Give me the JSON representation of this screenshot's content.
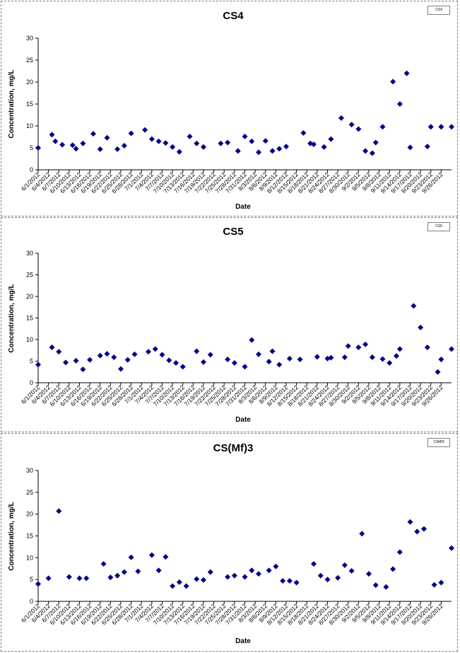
{
  "chart_data": [
    {
      "type": "scatter",
      "title": "CS4",
      "xlabel": "Date",
      "ylabel": "Concentration, mg/L",
      "ylim": [
        0,
        30
      ],
      "yticks": [
        0,
        5,
        10,
        15,
        20,
        25,
        30
      ],
      "xlim": [
        "6/1/2012",
        "9/29/2012"
      ],
      "xticks": [
        "6/1/2012",
        "6/4/2012",
        "6/7/2012",
        "6/10/2012",
        "6/13/2012",
        "6/16/2012",
        "6/19/2012",
        "6/22/2012",
        "6/25/2012",
        "6/28/2012",
        "7/1/2012",
        "7/4/2012",
        "7/7/2012",
        "7/10/2012",
        "7/13/2012",
        "7/16/2012",
        "7/19/2012",
        "7/22/2012",
        "7/25/2012",
        "7/28/2012",
        "7/31/2012",
        "8/3/2012",
        "8/6/2012",
        "8/9/2012",
        "8/12/2012",
        "8/15/2012",
        "8/18/2012",
        "8/21/2012",
        "8/24/2012",
        "8/27/2012",
        "8/30/2012",
        "9/2/2012",
        "9/5/2012",
        "9/8/2012",
        "9/11/2012",
        "9/14/2012",
        "9/17/2012",
        "9/20/2012",
        "9/23/2012",
        "9/26/2012"
      ],
      "grid": false,
      "legend": "top-right",
      "legend_text": "CS4",
      "color": "#00008B",
      "series": [
        {
          "name": "CS4",
          "x": [
            "6/1/2012",
            "6/5/2012",
            "6/6/2012",
            "6/8/2012",
            "6/11/2012",
            "6/12/2012",
            "6/14/2012",
            "6/17/2012",
            "6/19/2012",
            "6/21/2012",
            "6/24/2012",
            "6/26/2012",
            "6/28/2012",
            "7/2/2012",
            "7/4/2012",
            "7/6/2012",
            "7/8/2012",
            "7/10/2012",
            "7/12/2012",
            "7/15/2012",
            "7/17/2012",
            "7/19/2012",
            "7/24/2012",
            "7/26/2012",
            "7/29/2012",
            "7/31/2012",
            "8/2/2012",
            "8/4/2012",
            "8/6/2012",
            "8/8/2012",
            "8/10/2012",
            "8/12/2012",
            "8/17/2012",
            "8/19/2012",
            "8/20/2012",
            "8/23/2012",
            "8/25/2012",
            "8/28/2012",
            "8/31/2012",
            "9/2/2012",
            "9/4/2012",
            "9/6/2012",
            "9/7/2012",
            "9/9/2012",
            "9/12/2012",
            "9/14/2012",
            "9/16/2012",
            "9/17/2012",
            "9/22/2012",
            "9/23/2012",
            "9/26/2012",
            "9/29/2012"
          ],
          "y": [
            5.0,
            8.0,
            6.5,
            5.7,
            5.6,
            4.8,
            6.0,
            8.2,
            4.7,
            7.3,
            4.7,
            5.5,
            8.3,
            9.1,
            7.0,
            6.5,
            6.1,
            5.2,
            4.1,
            7.6,
            6.0,
            5.2,
            6.0,
            6.2,
            4.3,
            7.6,
            6.5,
            4.0,
            6.6,
            4.3,
            4.8,
            5.3,
            8.4,
            6.0,
            5.8,
            5.2,
            7.0,
            11.8,
            10.3,
            9.3,
            4.3,
            3.8,
            6.2,
            9.8,
            20.1,
            15.0,
            22.0,
            5.1,
            5.3,
            9.8,
            9.8,
            9.8
          ]
        }
      ]
    },
    {
      "type": "scatter",
      "title": "CS5",
      "xlabel": "Date",
      "ylabel": "Concentration, mg/L",
      "ylim": [
        0,
        30
      ],
      "yticks": [
        0,
        5,
        10,
        15,
        20,
        25,
        30
      ],
      "xlim": [
        "6/1/2012",
        "9/29/2012"
      ],
      "xticks": [
        "6/1/2012",
        "6/4/2012",
        "6/7/2012",
        "6/10/2012",
        "6/13/2012",
        "6/16/2012",
        "6/19/2012",
        "6/22/2012",
        "6/25/2012",
        "6/28/2012",
        "7/1/2012",
        "7/4/2012",
        "7/7/2012",
        "7/10/2012",
        "7/13/2012",
        "7/16/2012",
        "7/19/2012",
        "7/22/2012",
        "7/25/2012",
        "7/28/2012",
        "7/31/2012",
        "8/3/2012",
        "8/6/2012",
        "8/9/2012",
        "8/12/2012",
        "8/15/2012",
        "8/18/2012",
        "8/21/2012",
        "8/24/2012",
        "8/27/2012",
        "8/30/2012",
        "9/2/2012",
        "9/5/2012",
        "9/8/2012",
        "9/11/2012",
        "9/14/2012",
        "9/17/2012",
        "9/20/2012",
        "9/23/2012",
        "9/26/2012"
      ],
      "grid": false,
      "legend": "top-right",
      "legend_text": "CS5",
      "color": "#00008B",
      "series": [
        {
          "name": "CS5",
          "x": [
            "6/1/2012",
            "6/5/2012",
            "6/7/2012",
            "6/9/2012",
            "6/12/2012",
            "6/14/2012",
            "6/16/2012",
            "6/19/2012",
            "6/21/2012",
            "6/23/2012",
            "6/25/2012",
            "6/27/2012",
            "6/29/2012",
            "7/3/2012",
            "7/5/2012",
            "7/7/2012",
            "7/9/2012",
            "7/11/2012",
            "7/13/2012",
            "7/17/2012",
            "7/19/2012",
            "7/21/2012",
            "7/26/2012",
            "7/28/2012",
            "7/31/2012",
            "8/2/2012",
            "8/4/2012",
            "8/7/2012",
            "8/8/2012",
            "8/10/2012",
            "8/13/2012",
            "8/16/2012",
            "8/21/2012",
            "8/24/2012",
            "8/25/2012",
            "8/29/2012",
            "8/30/2012",
            "9/2/2012",
            "9/4/2012",
            "9/6/2012",
            "9/9/2012",
            "9/11/2012",
            "9/13/2012",
            "9/14/2012",
            "9/18/2012",
            "9/20/2012",
            "9/22/2012",
            "9/25/2012",
            "9/26/2012",
            "9/29/2012"
          ],
          "y": [
            4.2,
            8.2,
            7.2,
            4.7,
            5.1,
            3.1,
            5.3,
            6.3,
            6.7,
            5.9,
            3.2,
            5.3,
            6.6,
            7.2,
            7.8,
            6.5,
            5.2,
            4.6,
            3.7,
            7.3,
            4.8,
            6.5,
            5.4,
            4.6,
            3.7,
            9.9,
            6.6,
            4.9,
            7.3,
            4.2,
            5.6,
            5.4,
            6.0,
            5.6,
            5.8,
            5.9,
            8.5,
            8.2,
            8.9,
            5.9,
            5.5,
            4.6,
            6.2,
            7.8,
            17.8,
            12.8,
            8.2,
            2.5,
            5.4,
            7.8
          ]
        }
      ]
    },
    {
      "type": "scatter",
      "title": "CS(Mf)3",
      "xlabel": "Date",
      "ylabel": "Concentration, mg/L",
      "ylim": [
        0,
        30
      ],
      "yticks": [
        0,
        5,
        10,
        15,
        20,
        25,
        30
      ],
      "xlim": [
        "6/1/2012",
        "9/29/2012"
      ],
      "xticks": [
        "6/1/2012",
        "6/4/2012",
        "6/7/2012",
        "6/10/2012",
        "6/13/2012",
        "6/16/2012",
        "6/19/2012",
        "6/22/2012",
        "6/25/2012",
        "6/28/2012",
        "7/1/2012",
        "7/4/2012",
        "7/7/2012",
        "7/10/2012",
        "7/13/2012",
        "7/16/2012",
        "7/19/2012",
        "7/22/2012",
        "7/25/2012",
        "7/28/2012",
        "7/31/2012",
        "8/3/2012",
        "8/6/2012",
        "8/9/2012",
        "8/12/2012",
        "8/15/2012",
        "8/18/2012",
        "8/21/2012",
        "8/24/2012",
        "8/27/2012",
        "8/30/2012",
        "9/2/2012",
        "9/5/2012",
        "9/8/2012",
        "9/11/2012",
        "9/14/2012",
        "9/17/2012",
        "9/20/2012",
        "9/23/2012",
        "9/26/2012"
      ],
      "grid": false,
      "legend": "top-right",
      "legend_text": "CSMf3",
      "color": "#00008B",
      "series": [
        {
          "name": "CSMf3",
          "x": [
            "6/1/2012",
            "6/4/2012",
            "6/7/2012",
            "6/10/2012",
            "6/13/2012",
            "6/15/2012",
            "6/20/2012",
            "6/22/2012",
            "6/24/2012",
            "6/26/2012",
            "6/28/2012",
            "6/30/2012",
            "7/4/2012",
            "7/6/2012",
            "7/8/2012",
            "7/10/2012",
            "7/12/2012",
            "7/14/2012",
            "7/17/2012",
            "7/19/2012",
            "7/21/2012",
            "7/26/2012",
            "7/28/2012",
            "7/31/2012",
            "8/2/2012",
            "8/4/2012",
            "8/7/2012",
            "8/9/2012",
            "8/11/2012",
            "8/13/2012",
            "8/15/2012",
            "8/20/2012",
            "8/22/2012",
            "8/24/2012",
            "8/27/2012",
            "8/29/2012",
            "8/31/2012",
            "9/3/2012",
            "9/5/2012",
            "9/7/2012",
            "9/10/2012",
            "9/12/2012",
            "9/14/2012",
            "9/17/2012",
            "9/19/2012",
            "9/21/2012",
            "9/24/2012",
            "9/26/2012",
            "9/29/2012"
          ],
          "y": [
            4.0,
            5.3,
            20.7,
            5.6,
            5.3,
            5.3,
            8.6,
            5.5,
            5.9,
            6.7,
            10.1,
            6.9,
            10.6,
            7.1,
            10.2,
            3.5,
            4.4,
            3.5,
            5.1,
            4.9,
            6.7,
            5.6,
            5.9,
            5.6,
            7.1,
            6.3,
            7.1,
            8.0,
            4.7,
            4.7,
            4.3,
            8.6,
            5.9,
            5.0,
            5.4,
            8.3,
            7.0,
            15.5,
            6.3,
            3.7,
            3.3,
            7.4,
            11.3,
            18.2,
            16.0,
            16.6,
            3.8,
            4.3,
            12.2
          ]
        }
      ]
    }
  ]
}
